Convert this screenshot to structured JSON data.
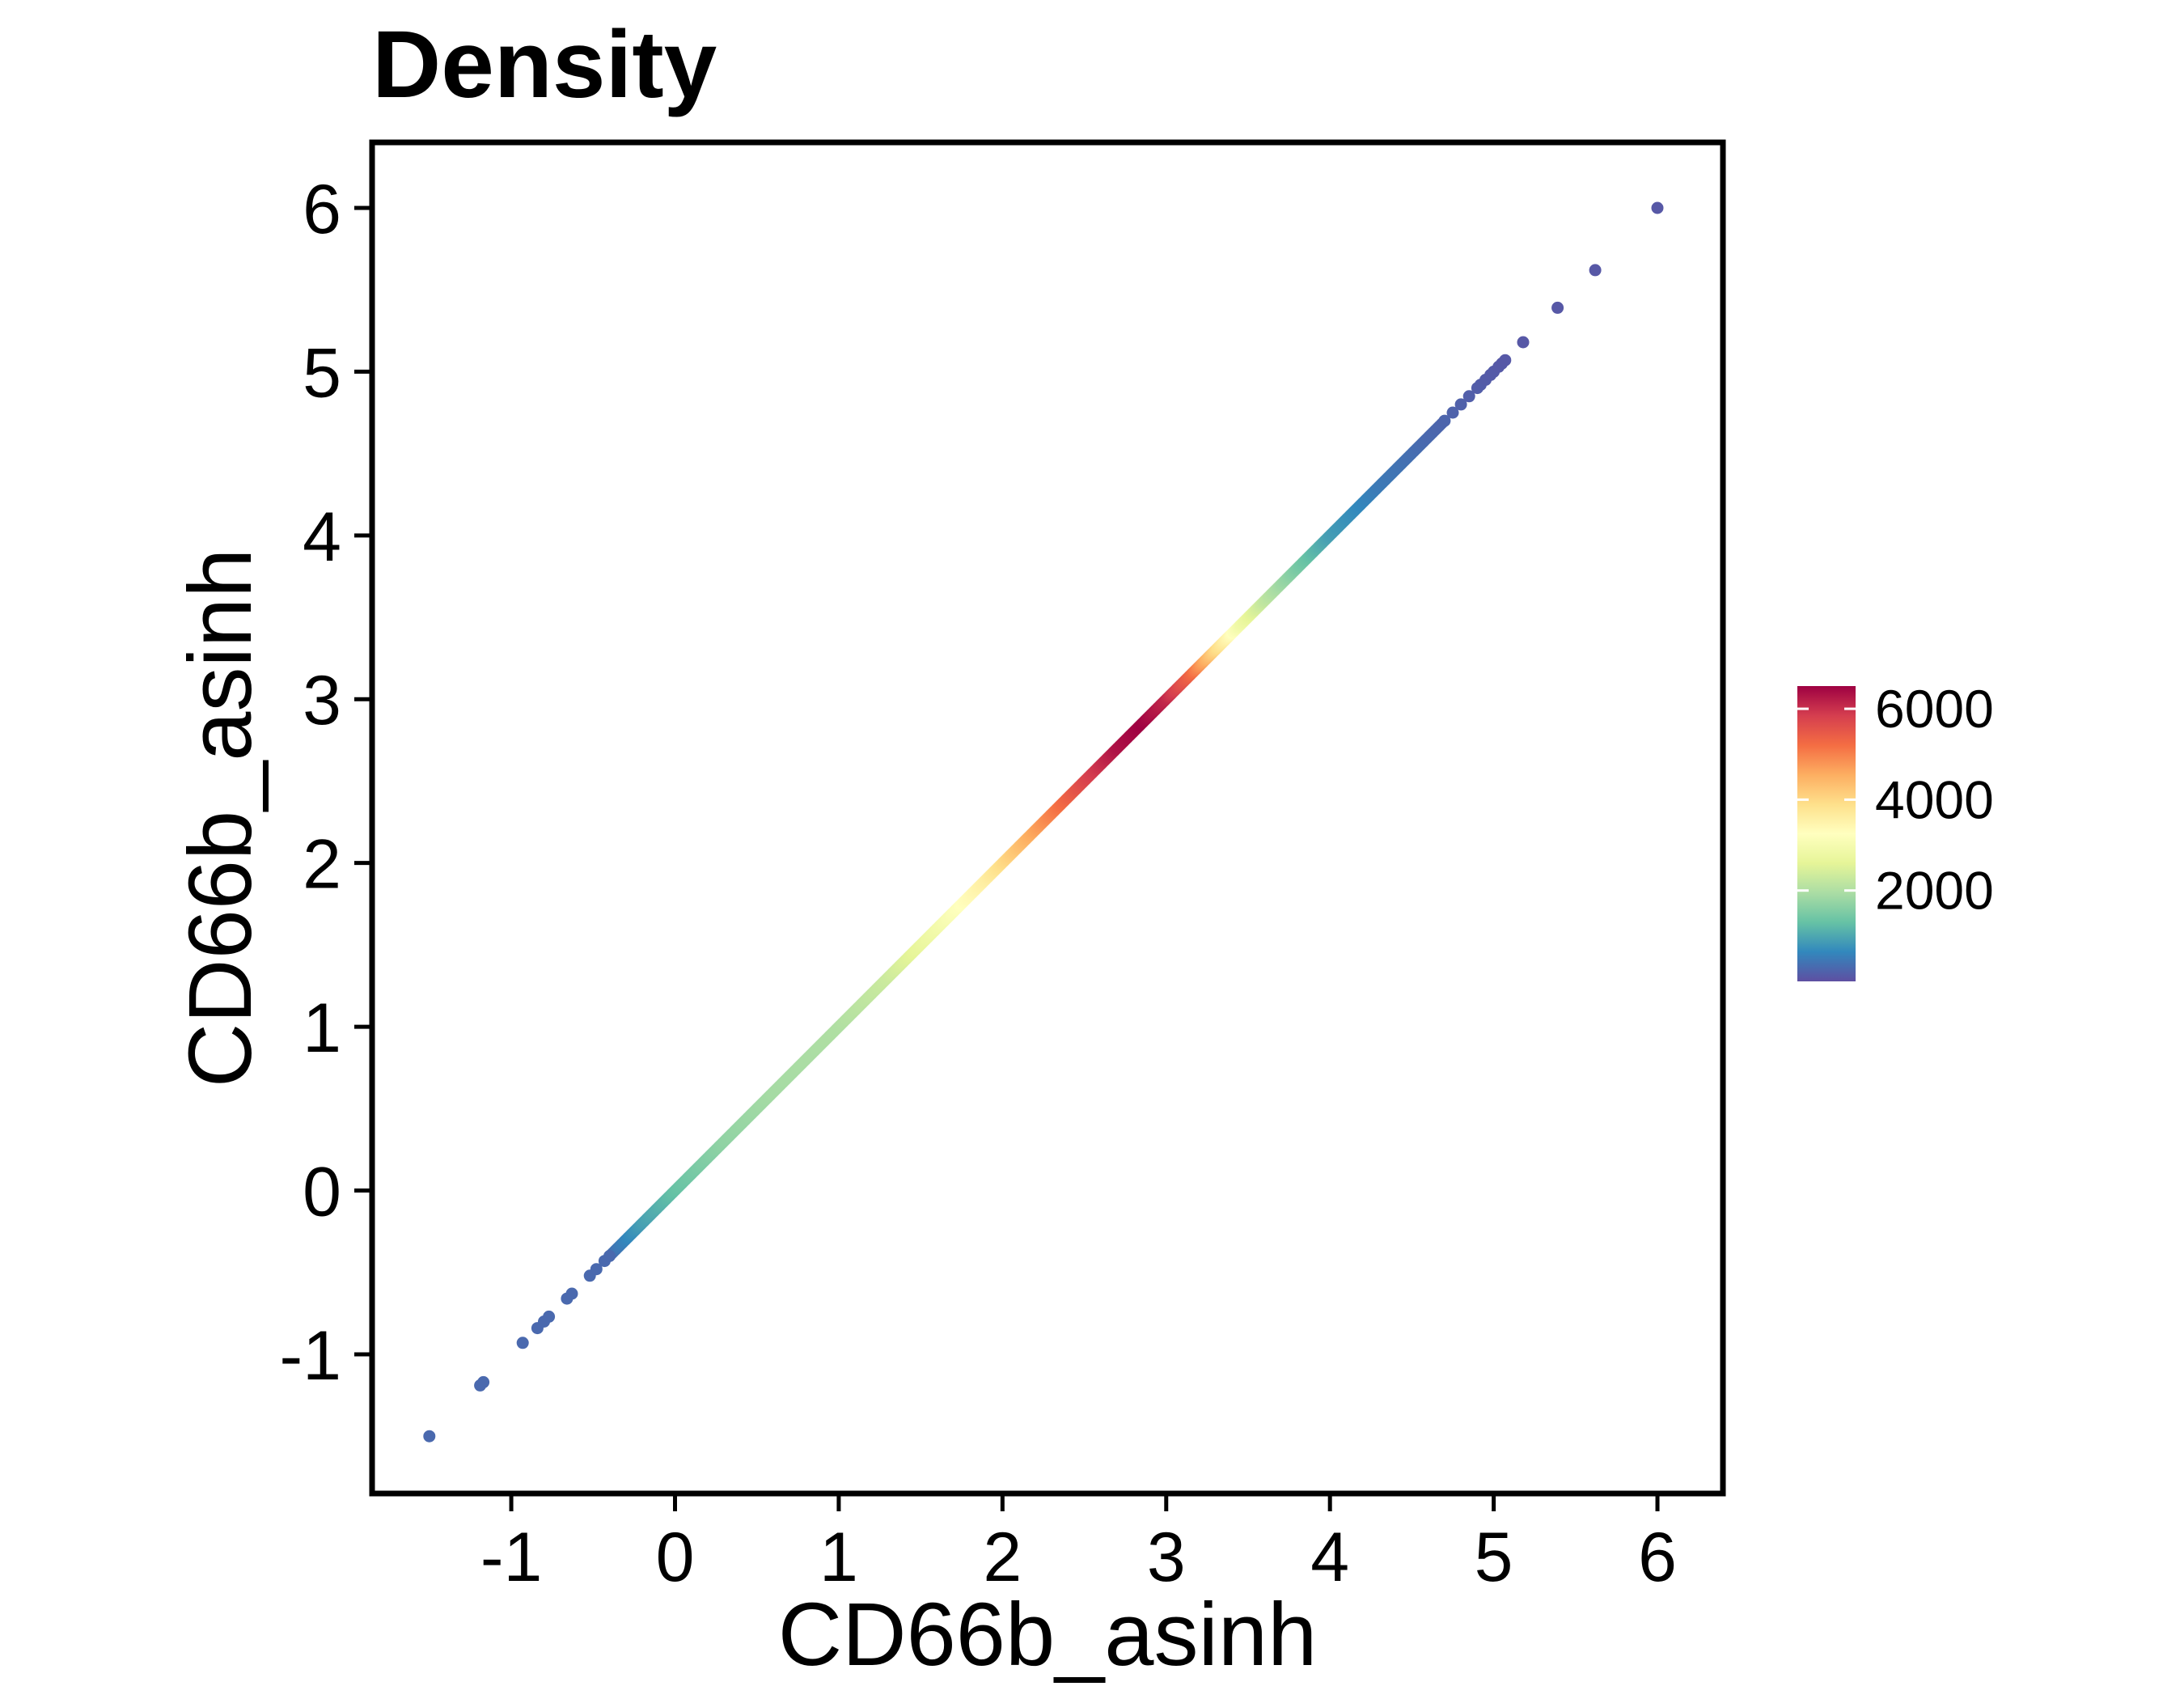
{
  "chart_data": {
    "type": "scatter",
    "title": "Density",
    "xlabel": "CD66b_asinh",
    "ylabel": "CD66b_asinh",
    "xlim": [
      -1.85,
      6.4
    ],
    "ylim": [
      -1.85,
      6.4
    ],
    "x_ticks": [
      -1,
      0,
      1,
      2,
      3,
      4,
      5,
      6
    ],
    "y_ticks": [
      -1,
      0,
      1,
      2,
      3,
      4,
      5,
      6
    ],
    "x_tick_labels": [
      "-1",
      "0",
      "1",
      "2",
      "3",
      "4",
      "5",
      "6"
    ],
    "y_tick_labels": [
      "-1",
      "0",
      "1",
      "2",
      "3",
      "4",
      "5",
      "6"
    ],
    "grid": false,
    "relation": "y = x",
    "color_scale": {
      "name": "density",
      "title": "",
      "palette": "Spectral (reversed)",
      "min": 0,
      "max": 6500,
      "ticks": [
        2000,
        4000,
        6000
      ],
      "tick_labels": [
        "2000",
        "4000",
        "6000"
      ],
      "stops": [
        "#5e4fa2",
        "#3288bd",
        "#66c2a5",
        "#abdda4",
        "#e6f598",
        "#ffffbf",
        "#fee08b",
        "#fdae61",
        "#f46d43",
        "#d53e4f",
        "#9e0142"
      ],
      "legend_position": "right"
    },
    "density_profile": {
      "x": [
        -0.4,
        -0.2,
        0,
        0.3,
        0.6,
        1.0,
        1.3,
        1.6,
        1.9,
        2.1,
        2.3,
        2.5,
        2.7,
        2.85,
        3.0,
        3.15,
        3.3,
        3.45,
        3.6,
        3.8,
        4.0,
        4.3,
        4.6,
        4.8,
        5.1
      ],
      "density": [
        300,
        900,
        1300,
        1700,
        1900,
        2000,
        2300,
        2900,
        3600,
        4300,
        5000,
        5700,
        6300,
        6500,
        6100,
        5300,
        4000,
        2900,
        2200,
        1500,
        900,
        500,
        300,
        200,
        100
      ]
    },
    "outlier_points": [
      -1.5,
      -1.19,
      -1.17,
      -0.93,
      -0.84,
      -0.8,
      -0.77,
      -0.66,
      -0.63,
      -0.52,
      -0.48,
      -0.43,
      -0.4,
      4.7,
      4.75,
      4.8,
      4.85,
      4.9,
      4.92,
      4.95,
      4.98,
      5.0,
      5.03,
      5.05,
      5.07,
      5.18,
      5.39,
      5.62,
      6.0
    ],
    "line_range": [
      -0.4,
      4.7
    ]
  }
}
